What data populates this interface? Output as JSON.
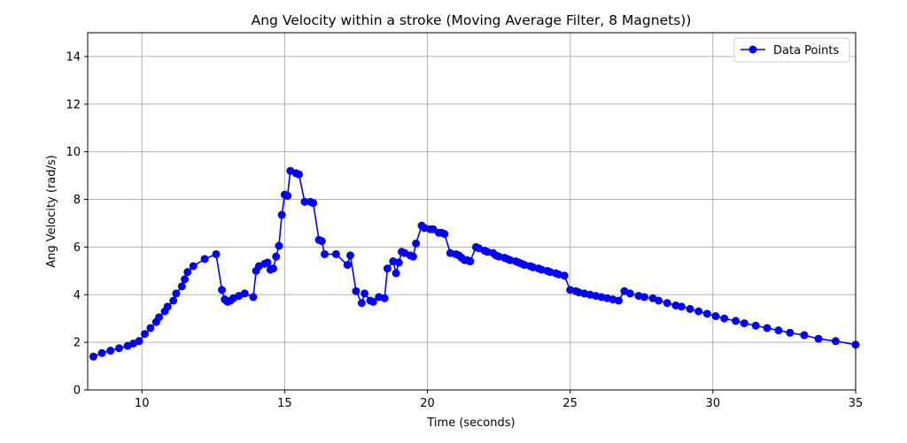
{
  "chart_data": {
    "type": "line",
    "title": "Ang Velocity within a stroke (Moving Average Filter, 8 Magnets))",
    "xlabel": "Time (seconds)",
    "ylabel": "Ang Velocity (rad/s)",
    "xlim": [
      8.1,
      35
    ],
    "ylim": [
      0,
      15
    ],
    "xticks": [
      10,
      15,
      20,
      25,
      30,
      35
    ],
    "yticks": [
      0,
      2,
      4,
      6,
      8,
      10,
      12,
      14
    ],
    "grid": true,
    "legend_position": "top-right",
    "series": [
      {
        "name": "Data Points",
        "color": "#0000ff",
        "marker": "circle",
        "x": [
          8.3,
          8.6,
          8.9,
          9.2,
          9.5,
          9.7,
          9.9,
          10.1,
          10.3,
          10.5,
          10.6,
          10.8,
          10.9,
          11.1,
          11.2,
          11.4,
          11.5,
          11.6,
          11.8,
          12.2,
          12.6,
          12.8,
          12.9,
          13.0,
          13.1,
          13.2,
          13.4,
          13.6,
          13.9,
          14.0,
          14.1,
          14.3,
          14.4,
          14.5,
          14.6,
          14.7,
          14.8,
          14.9,
          15.0,
          15.1,
          15.2,
          15.4,
          15.5,
          15.7,
          15.9,
          16.0,
          16.2,
          16.3,
          16.4,
          16.8,
          17.2,
          17.3,
          17.5,
          17.7,
          17.8,
          18.0,
          18.1,
          18.3,
          18.5,
          18.6,
          18.8,
          18.9,
          19.0,
          19.1,
          19.2,
          19.4,
          19.5,
          19.6,
          19.8,
          19.9,
          20.1,
          20.2,
          20.4,
          20.5,
          20.6,
          20.8,
          21.0,
          21.1,
          21.2,
          21.3,
          21.4,
          21.5,
          21.7,
          21.8,
          22.0,
          22.1,
          22.3,
          22.4,
          22.5,
          22.7,
          22.8,
          22.9,
          23.1,
          23.2,
          23.3,
          23.4,
          23.6,
          23.7,
          23.9,
          24.0,
          24.2,
          24.3,
          24.5,
          24.6,
          24.8,
          25.0,
          25.2,
          25.3,
          25.5,
          25.7,
          25.9,
          26.1,
          26.3,
          26.5,
          26.7,
          26.9,
          27.1,
          27.4,
          27.6,
          27.9,
          28.1,
          28.4,
          28.7,
          28.9,
          29.2,
          29.5,
          29.8,
          30.1,
          30.4,
          30.8,
          31.1,
          31.5,
          31.9,
          32.3,
          32.7,
          33.2,
          33.7,
          34.3,
          35.0
        ],
        "y": [
          1.4,
          1.55,
          1.65,
          1.75,
          1.85,
          1.95,
          2.05,
          2.35,
          2.6,
          2.85,
          3.05,
          3.3,
          3.5,
          3.75,
          4.05,
          4.35,
          4.65,
          4.95,
          5.2,
          5.5,
          5.7,
          4.2,
          3.8,
          3.7,
          3.75,
          3.85,
          3.95,
          4.05,
          3.9,
          5.0,
          5.2,
          5.3,
          5.35,
          5.05,
          5.1,
          5.6,
          6.05,
          7.35,
          8.2,
          8.15,
          9.2,
          9.1,
          9.05,
          7.9,
          7.9,
          7.85,
          6.3,
          6.25,
          5.7,
          5.7,
          5.25,
          5.65,
          4.15,
          3.65,
          4.05,
          3.75,
          3.7,
          3.9,
          3.85,
          5.1,
          5.4,
          4.9,
          5.35,
          5.8,
          5.75,
          5.65,
          5.6,
          6.15,
          6.9,
          6.8,
          6.75,
          6.75,
          6.6,
          6.6,
          6.55,
          5.75,
          5.7,
          5.65,
          5.55,
          5.45,
          5.45,
          5.4,
          6.0,
          5.95,
          5.85,
          5.8,
          5.75,
          5.65,
          5.6,
          5.55,
          5.5,
          5.45,
          5.4,
          5.35,
          5.3,
          5.25,
          5.2,
          5.15,
          5.1,
          5.05,
          5.0,
          4.95,
          4.9,
          4.85,
          4.8,
          4.2,
          4.15,
          4.1,
          4.05,
          4.0,
          3.95,
          3.9,
          3.85,
          3.8,
          3.75,
          4.15,
          4.05,
          3.95,
          3.9,
          3.85,
          3.75,
          3.65,
          3.55,
          3.5,
          3.4,
          3.3,
          3.2,
          3.1,
          3.0,
          2.9,
          2.8,
          2.7,
          2.6,
          2.5,
          2.4,
          2.3,
          2.15,
          2.05,
          1.9
        ]
      }
    ]
  }
}
